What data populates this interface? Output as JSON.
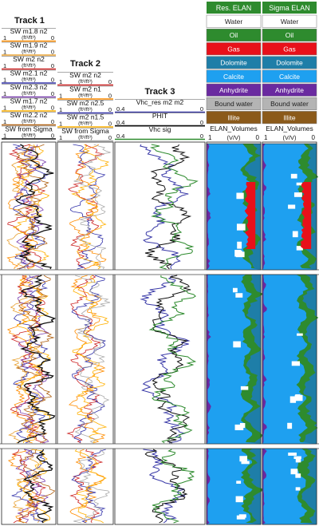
{
  "tracks": [
    {
      "title": "Track 1",
      "curves": [
        {
          "name": "SW m1.8 n2",
          "unit": "(ft³/ft³)",
          "min": "1",
          "max": "0",
          "color": "#ff8c00"
        },
        {
          "name": "SW m1.9 n2",
          "unit": "(ft³/ft³)",
          "min": "1",
          "max": "0",
          "color": "#e8a030"
        },
        {
          "name": "SW m2 n2",
          "unit": "(ft³/ft³)",
          "min": "1",
          "max": "0",
          "color": "#cc2222"
        },
        {
          "name": "SW m2.1 n2",
          "unit": "(ft³/ft³)",
          "min": "1",
          "max": "0",
          "color": "#3333aa"
        },
        {
          "name": "SW m2.3 n2",
          "unit": "(ft³/ft³)",
          "min": "1",
          "max": "0",
          "color": "#7a3fb0"
        },
        {
          "name": "SW m1.7 n2",
          "unit": "(ft³/ft³)",
          "min": "1",
          "max": "0",
          "color": "#ffb000"
        },
        {
          "name": "SW m2.2 n2",
          "unit": "(ft³/ft³)",
          "min": "1",
          "max": "0",
          "color": "#b06010"
        },
        {
          "name": "SW from Sigma",
          "unit": "(ft³/ft³)",
          "min": "1",
          "max": "0",
          "color": "#111111"
        }
      ]
    },
    {
      "title": "Track 2",
      "curves": [
        {
          "name": "SW m2 n2",
          "unit": "(ft³/ft³)",
          "min": "1",
          "max": "0",
          "color": "#cc2222"
        },
        {
          "name": "SW m2 n1",
          "unit": "(ft³/ft³)",
          "min": "1",
          "max": "0",
          "color": "#ff8c00"
        },
        {
          "name": "SW m2 n2.5",
          "unit": "(ft³/ft³)",
          "min": "1",
          "max": "0",
          "color": "#3333aa"
        },
        {
          "name": "SW m2 n1.5",
          "unit": "(ft³/ft³)",
          "min": "1",
          "max": "0",
          "color": "#ffb000"
        },
        {
          "name": "SW from Sigma",
          "unit": "(ft³/ft³)",
          "min": "1",
          "max": "0",
          "color": "#aaaaaa"
        }
      ]
    },
    {
      "title": "Track 3",
      "curves": [
        {
          "name": "Vhc_res m2 m2",
          "min": "0.4",
          "max": "0",
          "color": "#3a3aa8"
        },
        {
          "name": "PHIT",
          "min": "0.4",
          "max": "0",
          "color": "#111111"
        },
        {
          "name": "Vhc sig",
          "min": "0.4",
          "max": "0",
          "color": "#2e8b2e"
        }
      ]
    }
  ],
  "elan_tracks": [
    {
      "title": "Res. ELAN",
      "curve": "ELAN_Volumes",
      "unit": "(V/V)",
      "min": "1",
      "max": "0"
    },
    {
      "title": "Sigma ELAN",
      "curve": "ELAN_Volumes",
      "unit": "(V/V)",
      "min": "1",
      "max": "0"
    }
  ],
  "legend": [
    {
      "label": "Water",
      "fill": "#ffffff",
      "text": "#222222"
    },
    {
      "label": "Oil",
      "fill": "#2e8b2e",
      "text": "#ffffff"
    },
    {
      "label": "Gas",
      "fill": "#e8101a",
      "text": "#ffffff"
    },
    {
      "label": "Dolomite",
      "fill": "#1e7ea8",
      "text": "#ffffff"
    },
    {
      "label": "Calcite",
      "fill": "#1ea0f0",
      "text": "#ffffff"
    },
    {
      "label": "Anhydrite",
      "fill": "#6a2aa0",
      "text": "#ffffff"
    },
    {
      "label": "Bound water",
      "fill": "#b4b4b4",
      "text": "#222222"
    },
    {
      "label": "Illite",
      "fill": "#8b5a1a",
      "text": "#ffffff"
    }
  ],
  "chart_data": {
    "type": "line",
    "x_axis": {
      "track1": [
        1,
        0
      ],
      "track2": [
        1,
        0
      ],
      "track3": [
        0.4,
        0
      ],
      "elan": [
        1,
        0
      ]
    },
    "depth_sections": 3,
    "grid": false
  }
}
